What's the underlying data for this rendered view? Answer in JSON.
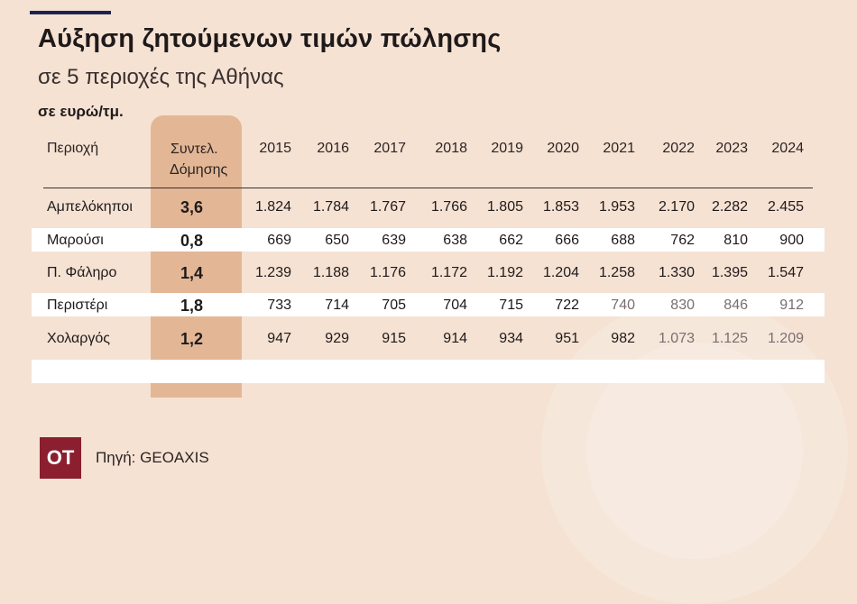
{
  "header": {
    "title": "Αύξηση ζητούμενων τιμών πώλησης",
    "subtitle": "σε 5 περιοχές της Αθήνας",
    "unit": "σε ευρώ/τμ."
  },
  "table_header": {
    "region": "Περιοχή",
    "coef_line1": "Συντελ.",
    "coef_line2": "Δόμησης",
    "years": [
      "2015",
      "2016",
      "2017",
      "2018",
      "2019",
      "2020",
      "2021",
      "2022",
      "2023",
      "2024"
    ]
  },
  "footer": {
    "logo": "ΟΤ",
    "source": "Πηγή: GEOAXIS"
  },
  "colors": {
    "background": "#f5e2d3",
    "highlight_column": "#e3b796",
    "logo": "#8b1f2f",
    "top_rule": "#1c2152"
  },
  "chart_data": {
    "type": "table",
    "title": "Αύξηση ζητούμενων τιμών πώλησης",
    "subtitle": "σε 5 περιοχές της Αθήνας",
    "columns": [
      "Περιοχή",
      "Συντελ. Δόμησης",
      "2015",
      "2016",
      "2017",
      "2018",
      "2019",
      "2020",
      "2021",
      "2022",
      "2023",
      "2024"
    ],
    "rows": [
      {
        "region": "Αμπελόκηποι",
        "coef": "3,6",
        "values": [
          "1.824",
          "1.784",
          "1.767",
          "1.766",
          "1.805",
          "1.853",
          "1.953",
          "2.170",
          "2.282",
          "2.455"
        ]
      },
      {
        "region": "Μαρούσι",
        "coef": "0,8",
        "values": [
          "669",
          "650",
          "639",
          "638",
          "662",
          "666",
          "688",
          "762",
          "810",
          "900"
        ]
      },
      {
        "region": "Π. Φάληρο",
        "coef": "1,4",
        "values": [
          "1.239",
          "1.188",
          "1.176",
          "1.172",
          "1.192",
          "1.204",
          "1.258",
          "1.330",
          "1.395",
          "1.547"
        ]
      },
      {
        "region": "Περιστέρι",
        "coef": "1,8",
        "values": [
          "733",
          "714",
          "705",
          "704",
          "715",
          "722",
          "740",
          "830",
          "846",
          "912"
        ]
      },
      {
        "region": "Χολαργός",
        "coef": "1,2",
        "values": [
          "947",
          "929",
          "915",
          "914",
          "934",
          "951",
          "982",
          "1.073",
          "1.125",
          "1.209"
        ]
      }
    ]
  }
}
